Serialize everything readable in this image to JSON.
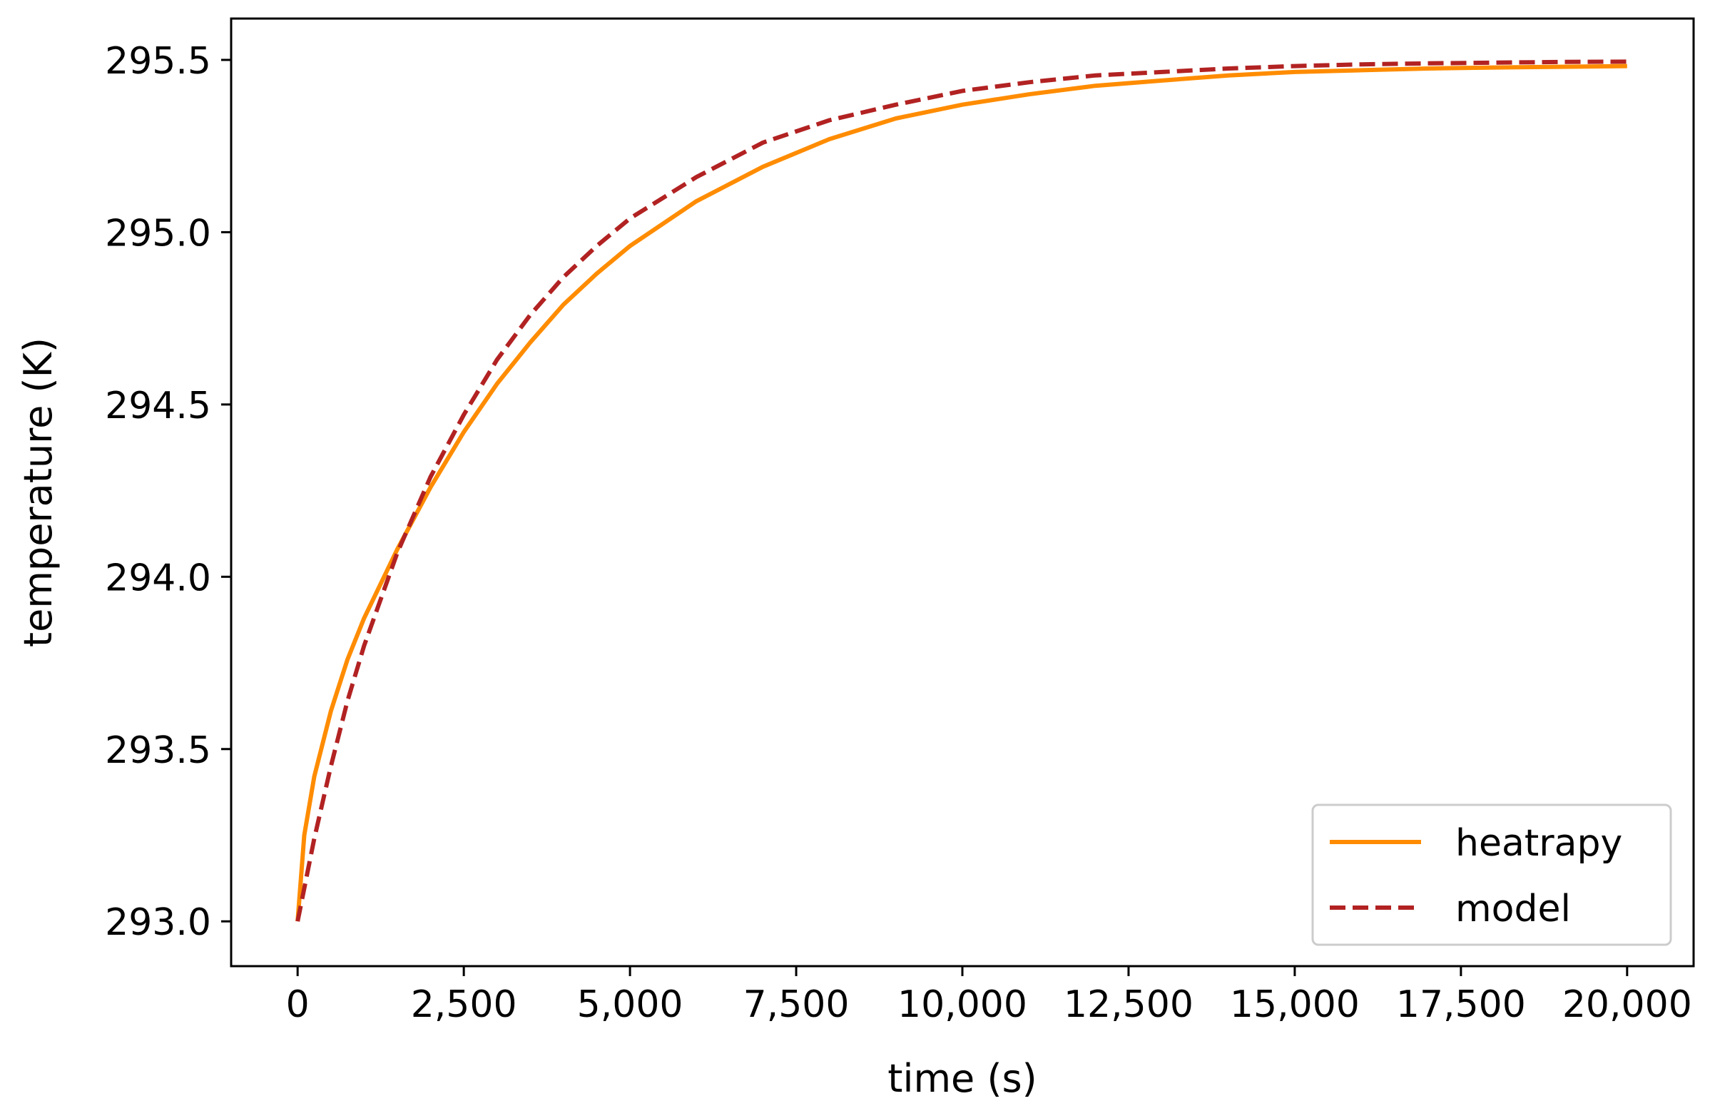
{
  "chart_data": {
    "type": "line",
    "title": "",
    "xlabel": "time (s)",
    "ylabel": "temperature (K)",
    "xlim": [
      -1000,
      21000
    ],
    "ylim": [
      292.87,
      295.62
    ],
    "xticks": [
      0,
      2500,
      5000,
      7500,
      10000,
      12500,
      15000,
      17500,
      20000
    ],
    "xtick_labels": [
      "0",
      "2,500",
      "5,000",
      "7,500",
      "10,000",
      "12,500",
      "15,000",
      "17,500",
      "20,000"
    ],
    "yticks": [
      293.0,
      293.5,
      294.0,
      294.5,
      295.0,
      295.5
    ],
    "ytick_labels": [
      "293.0",
      "293.5",
      "294.0",
      "294.5",
      "295.0",
      "295.5"
    ],
    "grid": false,
    "legend_position": "lower-right",
    "series": [
      {
        "name": "heatrapy",
        "color": "#ff8c00",
        "style": "solid",
        "x": [
          0,
          100,
          250,
          500,
          750,
          1000,
          1500,
          2000,
          2500,
          3000,
          3500,
          4000,
          4500,
          5000,
          6000,
          7000,
          8000,
          9000,
          10000,
          11000,
          12000,
          13000,
          14000,
          15000,
          16000,
          17000,
          18000,
          19000,
          20000
        ],
        "values": [
          293.0,
          293.25,
          293.42,
          293.61,
          293.76,
          293.88,
          294.08,
          294.26,
          294.42,
          294.56,
          294.68,
          294.79,
          294.88,
          294.96,
          295.09,
          295.19,
          295.27,
          295.33,
          295.37,
          295.4,
          295.425,
          295.44,
          295.455,
          295.465,
          295.47,
          295.475,
          295.478,
          295.48,
          295.482
        ]
      },
      {
        "name": "model",
        "color": "#b22222",
        "style": "dashed",
        "x": [
          0,
          250,
          500,
          750,
          1000,
          1500,
          2000,
          2500,
          3000,
          3500,
          4000,
          4500,
          5000,
          6000,
          7000,
          8000,
          9000,
          10000,
          11000,
          12000,
          13000,
          14000,
          15000,
          16000,
          17000,
          18000,
          19000,
          20000
        ],
        "values": [
          293.0,
          293.24,
          293.45,
          293.64,
          293.8,
          294.07,
          294.29,
          294.47,
          294.63,
          294.76,
          294.87,
          294.96,
          295.04,
          295.16,
          295.26,
          295.325,
          295.37,
          295.41,
          295.435,
          295.455,
          295.465,
          295.475,
          295.482,
          295.487,
          295.49,
          295.492,
          295.494,
          295.495
        ]
      }
    ]
  }
}
